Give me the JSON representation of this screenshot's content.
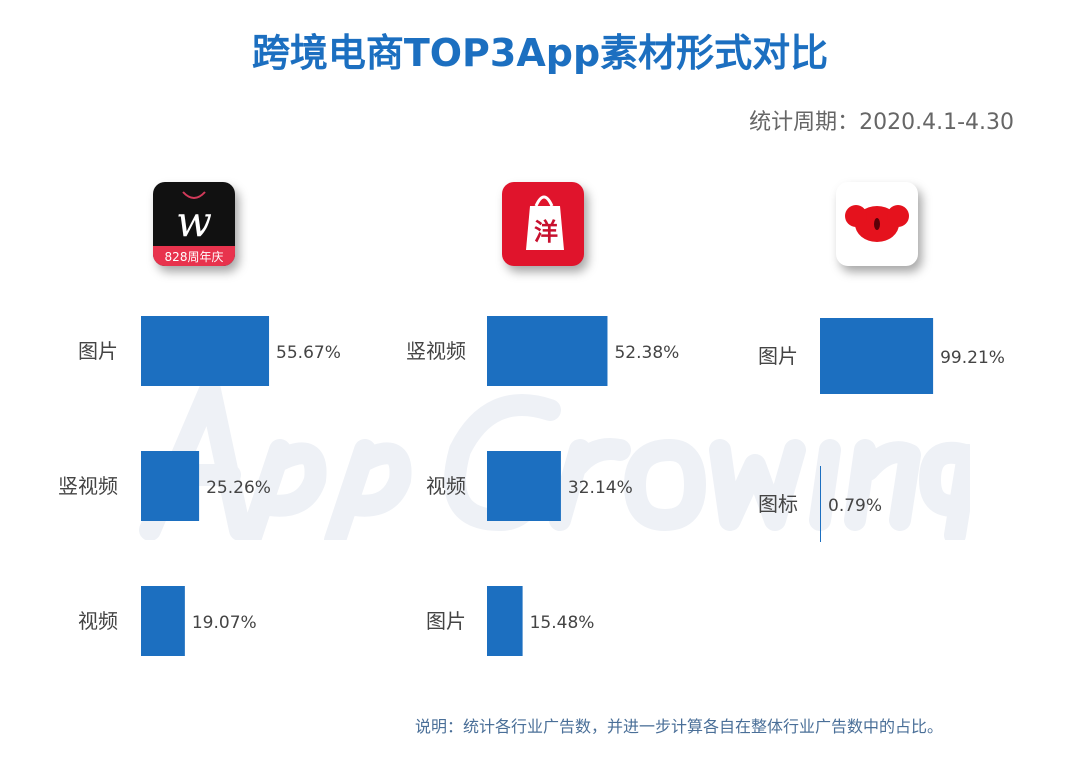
{
  "title": "跨境电商TOP3App素材形式对比",
  "period": "统计周期：2020.4.1-4.30",
  "watermark": "AppGrowing",
  "note": "说明：统计各行业广告数，并进一步计算各自在整体行业广告数中的占比。",
  "bar_color": "#1c6fc0",
  "icons": [
    {
      "name": "w-app-icon",
      "badge_text": "828周年庆",
      "letter": "w"
    },
    {
      "name": "yang-shopping-bag-icon",
      "letter": "洋"
    },
    {
      "name": "koala-icon"
    }
  ],
  "chart_data": [
    {
      "type": "bar",
      "orientation": "horizontal",
      "categories": [
        "图片",
        "竖视频",
        "视频"
      ],
      "values": [
        55.67,
        25.26,
        19.07
      ],
      "labels": [
        "55.67%",
        "25.26%",
        "19.07%"
      ],
      "xlim": [
        0,
        100
      ]
    },
    {
      "type": "bar",
      "orientation": "horizontal",
      "categories": [
        "竖视频",
        "视频",
        "图片"
      ],
      "values": [
        52.38,
        32.14,
        15.48
      ],
      "labels": [
        "52.38%",
        "32.14%",
        "15.48%"
      ],
      "xlim": [
        0,
        100
      ]
    },
    {
      "type": "bar",
      "orientation": "horizontal",
      "categories": [
        "图片",
        "图标"
      ],
      "values": [
        99.21,
        0.79
      ],
      "labels": [
        "99.21%",
        "0.79%"
      ],
      "xlim": [
        0,
        100
      ]
    }
  ]
}
